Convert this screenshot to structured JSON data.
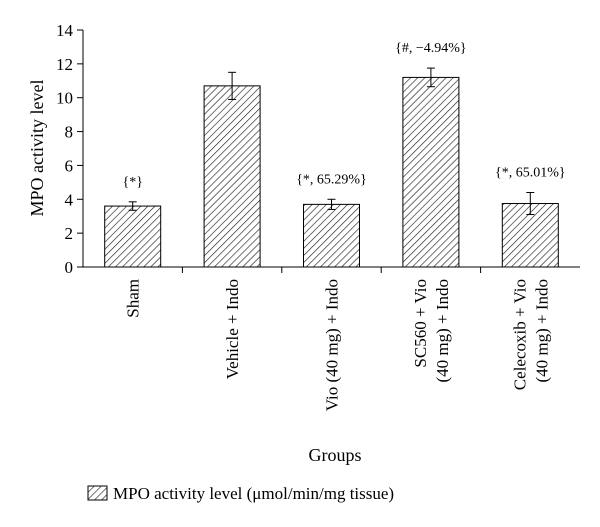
{
  "chart_data": {
    "type": "bar",
    "ylabel": "MPO activity level",
    "xlabel": "Groups",
    "ylim": [
      0,
      14
    ],
    "yticks": [
      0,
      2,
      4,
      6,
      8,
      10,
      12,
      14
    ],
    "categories": [
      [
        "Sham"
      ],
      [
        "Vehicle + Indo"
      ],
      [
        "Vio (40 mg) + Indo"
      ],
      [
        "SC560 + Vio",
        "(40 mg) + Indo"
      ],
      [
        "Celecoxib + Vio",
        "(40 mg) + Indo"
      ]
    ],
    "values": [
      3.6,
      10.7,
      3.7,
      11.2,
      3.75
    ],
    "errors": [
      0.25,
      0.8,
      0.3,
      0.55,
      0.65
    ],
    "annotations": [
      "{*}",
      "",
      "{*, 65.29%}",
      "{#, −4.94%}",
      "{*, 65.01%}"
    ],
    "series": [
      {
        "name": "MPO activity level (μmol/min/mg tissue)",
        "pattern": "diagonal-hatch"
      }
    ]
  }
}
